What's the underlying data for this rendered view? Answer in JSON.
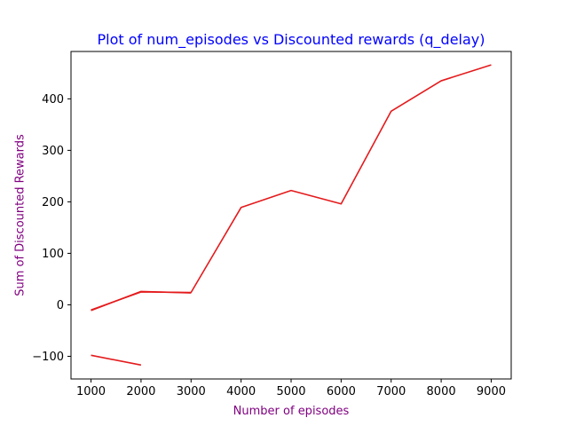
{
  "chart_data": {
    "type": "line",
    "title": "Plot of num_episodes vs Discounted rewards (q_delay)",
    "xlabel": "Number of episodes",
    "ylabel": "Sum of Discounted Rewards",
    "xlim": [
      600,
      9400
    ],
    "ylim": [
      -144,
      492
    ],
    "x_ticks": [
      1000,
      2000,
      3000,
      4000,
      5000,
      6000,
      7000,
      8000,
      9000
    ],
    "y_ticks": [
      -100,
      0,
      100,
      200,
      300,
      400
    ],
    "grid": false,
    "legend": "none",
    "series": [
      {
        "color": "#e41a1c",
        "x": [
          1000,
          2000
        ],
        "y": [
          -98,
          -117
        ]
      },
      {
        "color": "#e41a1c",
        "x": [
          1000,
          2000,
          3000
        ],
        "y": [
          -11,
          26,
          23
        ]
      },
      {
        "color": "#e41a1c",
        "x": [
          1000,
          2000,
          3000,
          4000,
          5000,
          6000,
          7000,
          8000,
          9000
        ],
        "y": [
          -10,
          25,
          24,
          189,
          222,
          196,
          376,
          435,
          466
        ]
      }
    ],
    "colors": {
      "title": "#0000ff",
      "axis_label": "#800080",
      "axis": "#000000"
    }
  }
}
